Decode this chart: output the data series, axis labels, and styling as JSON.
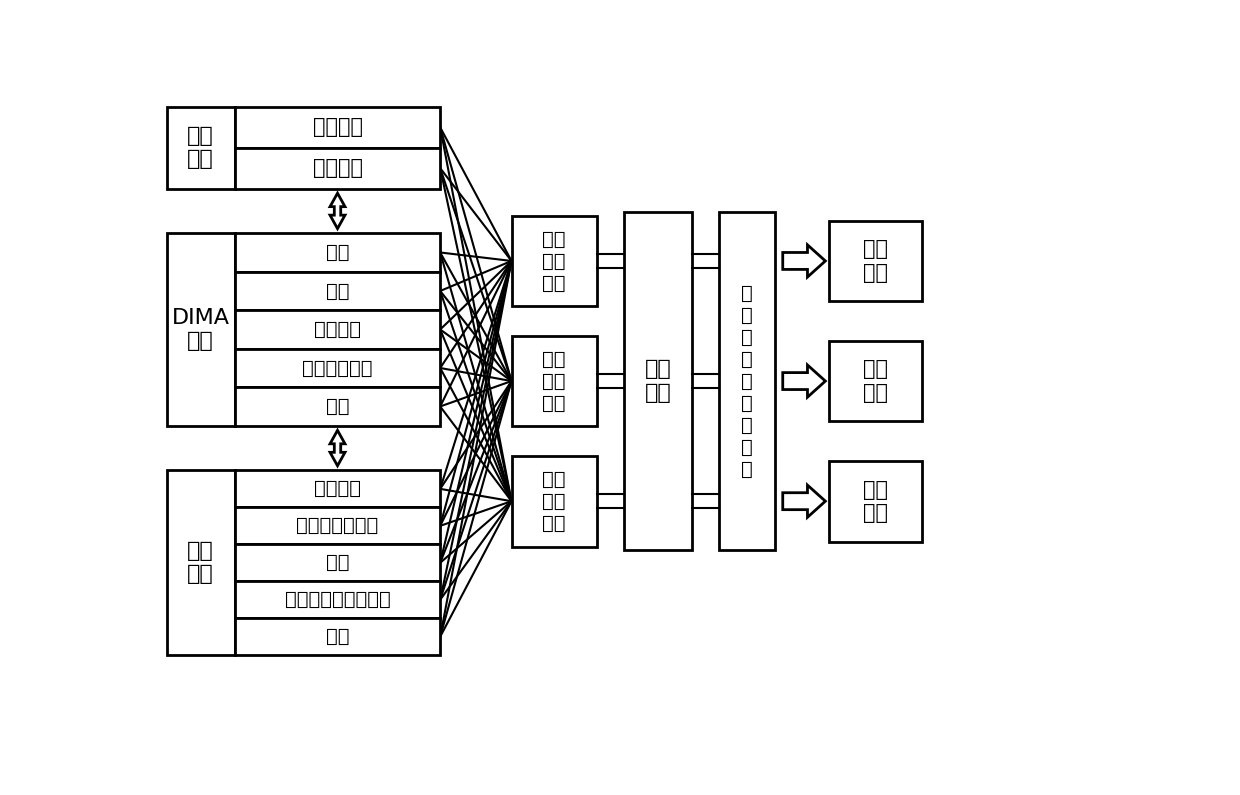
{
  "bg_color": "#ffffff",
  "text_color": "#000000",
  "install_pos_label": "安装\n位置",
  "install_pos_items": [
    "安装空间",
    "安装资源"
  ],
  "dima_label": "DIMA\n设备",
  "dima_items": [
    "设备",
    "任务",
    "隔离约束",
    "安装资源需求",
    "链路"
  ],
  "system_label": "系统\n任务",
  "system_items": [
    "系统任务",
    "安装设备的能力",
    "外设",
    "安全、安装资源约束",
    "信号"
  ],
  "model_boxes": [
    "硬件\n配置\n模型",
    "网络\n配置\n模型",
    "软件\n配置\n模型"
  ],
  "eval_box_label": "评估\n标准",
  "optim_box_label": "单\n、\n多\n目\n标\n优\n化\n算\n法",
  "output_boxes": [
    "硬件\n配置",
    "网络\n配置",
    "软件\n配置"
  ]
}
